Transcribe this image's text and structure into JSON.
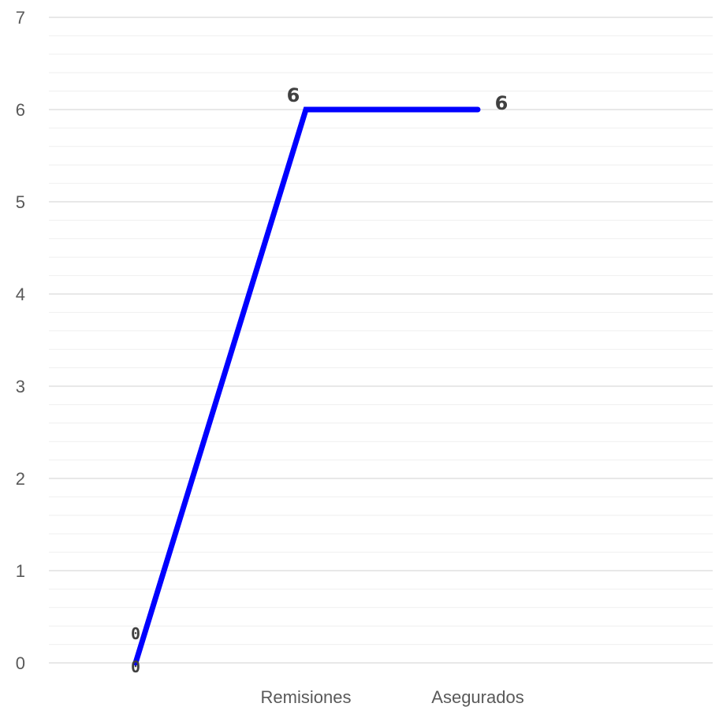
{
  "chart_data": {
    "type": "line",
    "title": "",
    "xlabel": "",
    "ylabel": "",
    "ylim": [
      0,
      7
    ],
    "yticks": [
      0,
      1,
      2,
      3,
      4,
      5,
      6,
      7
    ],
    "minor_gridlines_per_unit": 5,
    "grid": true,
    "legend": "none",
    "categories": [
      "",
      "Remisiones",
      "Asegurados"
    ],
    "series": [
      {
        "color": "#0000ff",
        "values": [
          0,
          6,
          6
        ],
        "data_labels": [
          "0",
          "6",
          "6"
        ]
      }
    ],
    "extra_labels": [
      "0"
    ]
  }
}
